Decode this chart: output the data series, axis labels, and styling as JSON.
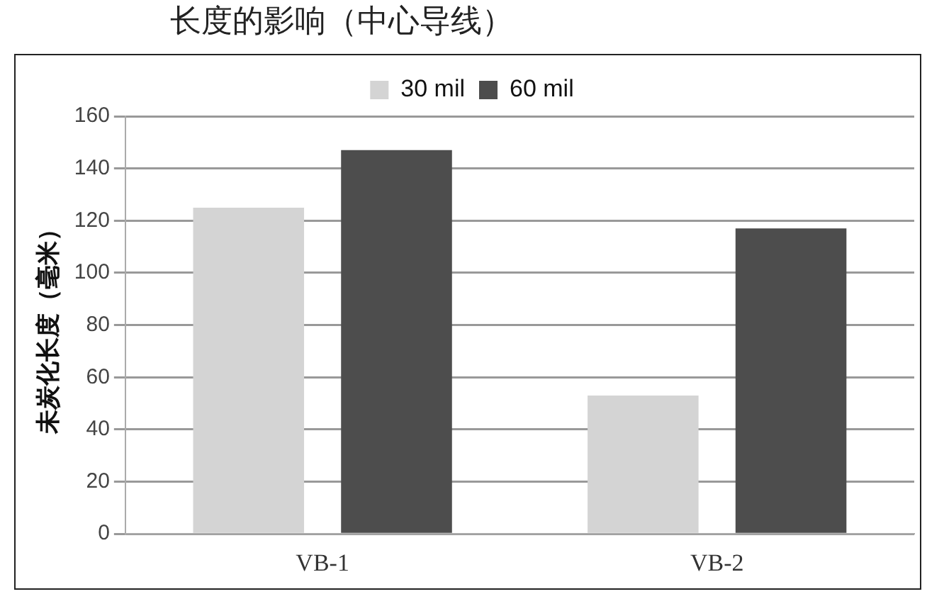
{
  "chart_data": {
    "type": "bar",
    "title": "长度的影响（中心导线）",
    "ylabel": "未炭化长度（毫米）",
    "categories": [
      "VB-1",
      "VB-2"
    ],
    "series": [
      {
        "name": "30 mil",
        "color": "#d4d4d4",
        "values": [
          125,
          53
        ]
      },
      {
        "name": "60 mil",
        "color": "#4d4d4d",
        "values": [
          147,
          117
        ]
      }
    ],
    "ylim": [
      0,
      160
    ],
    "yticks": [
      0,
      20,
      40,
      60,
      80,
      100,
      120,
      140,
      160
    ],
    "grid": "y",
    "legend": "top"
  }
}
